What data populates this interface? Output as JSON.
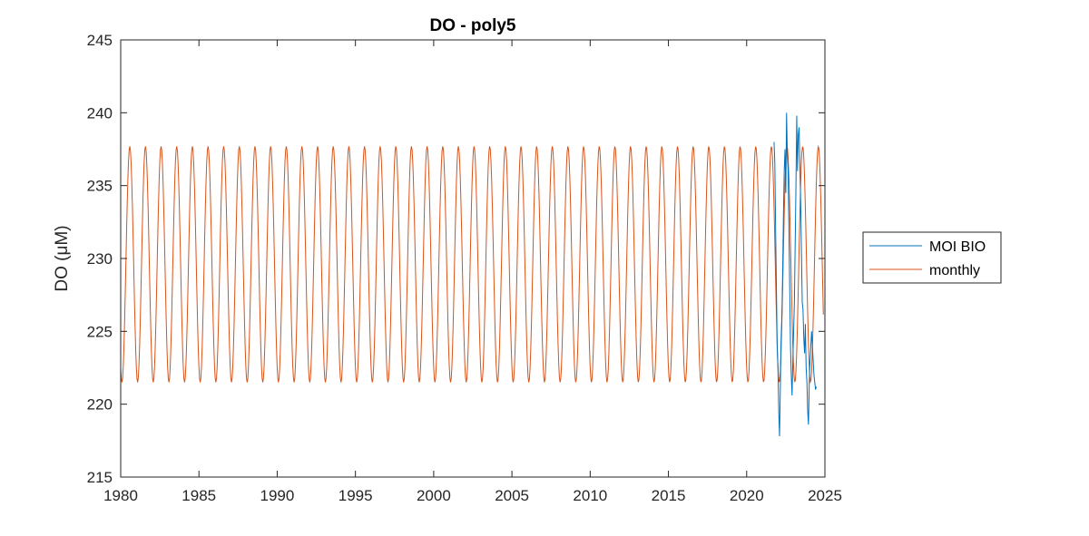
{
  "chart_data": {
    "type": "line",
    "title": "DO - poly5",
    "xlabel": "",
    "ylabel": "DO (μM)",
    "xlim": [
      1980,
      2025
    ],
    "ylim": [
      215,
      245
    ],
    "xticks": [
      1980,
      1985,
      1990,
      1995,
      2000,
      2005,
      2010,
      2015,
      2020,
      2025
    ],
    "yticks": [
      215,
      220,
      225,
      230,
      235,
      240,
      245
    ],
    "grid": false,
    "legend_position": "outside-right",
    "series": [
      {
        "name": "MOI BIO",
        "color": "#0072BD",
        "x": [
          2021.75,
          2021.8,
          2021.85,
          2021.9,
          2021.95,
          2022.0,
          2022.05,
          2022.1,
          2022.15,
          2022.2,
          2022.25,
          2022.3,
          2022.35,
          2022.4,
          2022.45,
          2022.5,
          2022.55,
          2022.6,
          2022.65,
          2022.7,
          2022.75,
          2022.8,
          2022.85,
          2022.9,
          2022.95,
          2023.0,
          2023.05,
          2023.1,
          2023.15,
          2023.2,
          2023.25,
          2023.3,
          2023.35,
          2023.4,
          2023.45,
          2023.5,
          2023.55,
          2023.6,
          2023.65,
          2023.7,
          2023.75,
          2023.8,
          2023.85,
          2023.9,
          2023.95,
          2024.0,
          2024.05,
          2024.1,
          2024.15,
          2024.2,
          2024.25,
          2024.3,
          2024.35,
          2024.4,
          2024.45
        ],
        "values": [
          238.0,
          236.5,
          232.0,
          228.0,
          224.0,
          222.5,
          219.5,
          217.8,
          221.0,
          224.5,
          226.0,
          229.0,
          233.0,
          236.0,
          237.5,
          234.5,
          240.0,
          237.0,
          236.0,
          232.0,
          228.0,
          224.0,
          222.0,
          220.6,
          223.0,
          225.0,
          227.0,
          231.0,
          235.0,
          239.8,
          236.0,
          238.5,
          239.0,
          236.5,
          234.0,
          230.5,
          227.0,
          226.5,
          224.5,
          223.5,
          225.5,
          222.5,
          221.5,
          219.5,
          218.6,
          221.5,
          223.0,
          224.0,
          225.0,
          224.0,
          223.0,
          222.0,
          221.5,
          221.0,
          221.2
        ]
      },
      {
        "name": "monthly",
        "color": "#D95319",
        "x_start": 1980.0,
        "x_end": 2024.9,
        "period_years": 1.0,
        "min": 221.5,
        "max": 237.7,
        "peak_phase": 0.58
      }
    ]
  }
}
